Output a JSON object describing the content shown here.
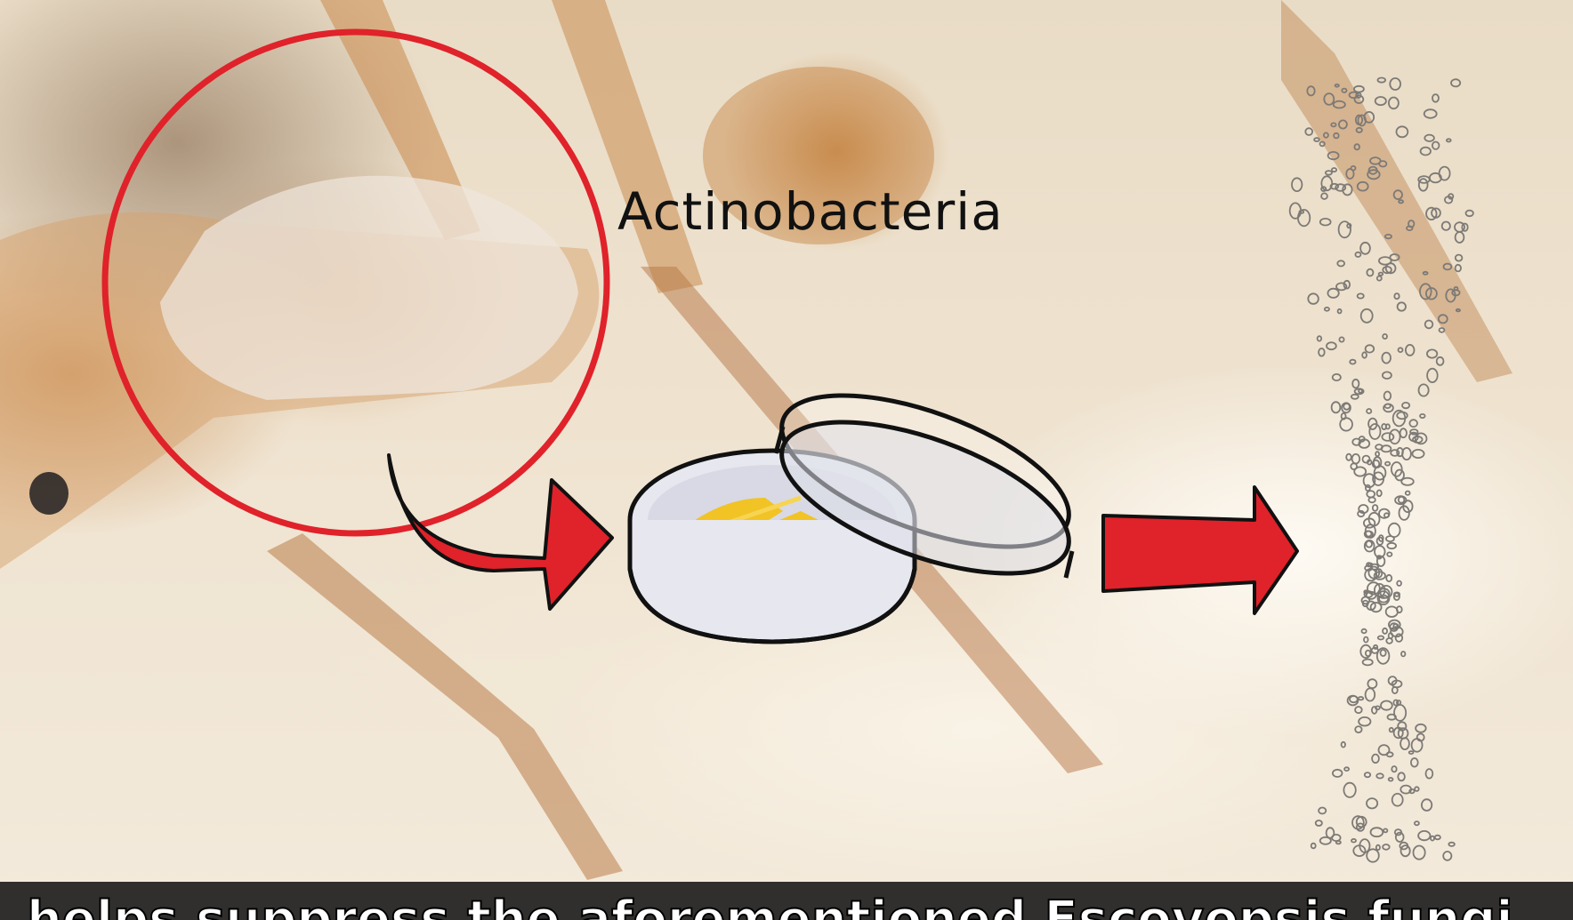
{
  "overlay": {
    "label": "Actinobacteria"
  },
  "caption": {
    "text": "helps suppress the aforementioned Escovopsis fungi"
  },
  "colors": {
    "circle": "#e0222a",
    "arrow": "#e0222a",
    "culture": "#f2c21a",
    "dish": "#d9dbe6"
  }
}
